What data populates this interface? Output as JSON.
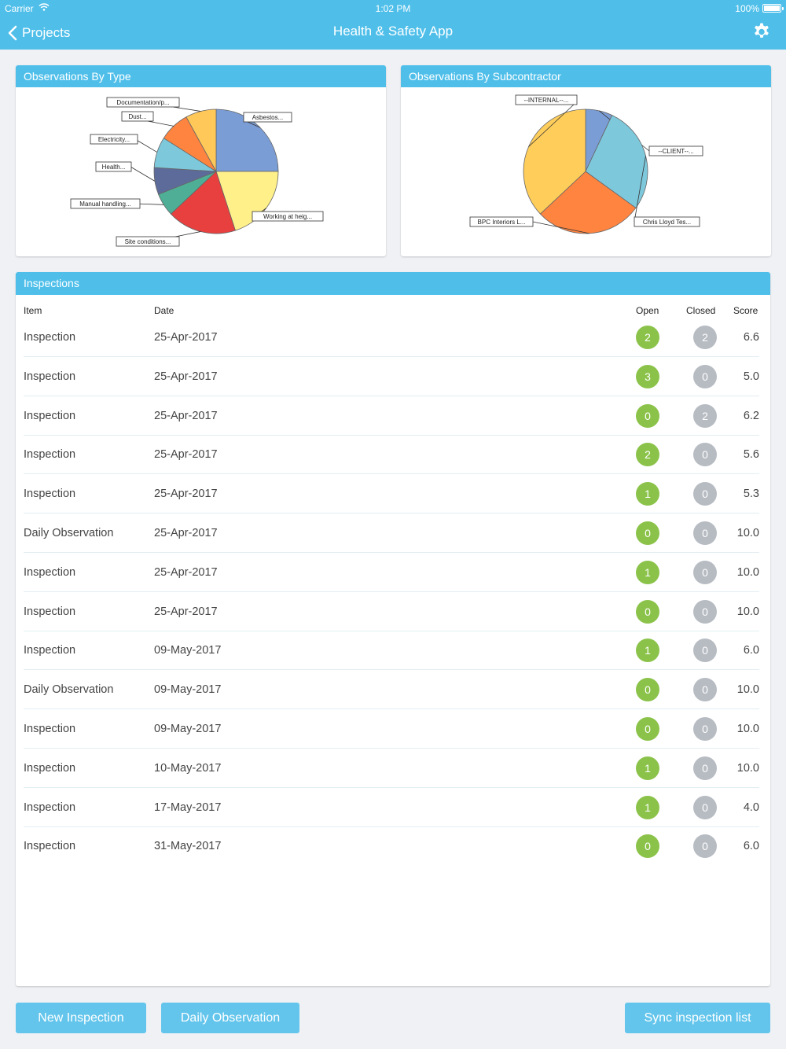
{
  "status_bar": {
    "carrier": "Carrier",
    "time": "1:02 PM",
    "battery": "100%"
  },
  "nav": {
    "back_label": "Projects",
    "title": "Health & Safety App",
    "settings_icon": "gear-icon"
  },
  "charts": {
    "by_type_title": "Observations By Type",
    "by_subcontractor_title": "Observations By Subcontractor"
  },
  "chart_data": [
    {
      "type": "pie",
      "title": "Observations By Type",
      "slices": [
        {
          "label": "Asbestos...",
          "value": 25,
          "color": "#7b9dd6"
        },
        {
          "label": "Working at heig...",
          "value": 20,
          "color": "#fff08a"
        },
        {
          "label": "Site conditions...",
          "value": 18,
          "color": "#e8403f"
        },
        {
          "label": "Manual handling...",
          "value": 6,
          "color": "#4fae96"
        },
        {
          "label": "Health...",
          "value": 7,
          "color": "#5d6b9a"
        },
        {
          "label": "Electricity...",
          "value": 8,
          "color": "#7ec8dc"
        },
        {
          "label": "Dust...",
          "value": 8,
          "color": "#ff8440"
        },
        {
          "label": "Documentation/p...",
          "value": 8,
          "color": "#ffc859"
        }
      ]
    },
    {
      "type": "pie",
      "title": "Observations By Subcontractor",
      "slices": [
        {
          "label": "--CLIENT--...",
          "value": 7,
          "color": "#7b9dd6"
        },
        {
          "label": "Chris Lloyd Tes...",
          "value": 28,
          "color": "#7ec8dc"
        },
        {
          "label": "BPC Interiors L...",
          "value": 28,
          "color": "#ff8440"
        },
        {
          "label": "--INTERNAL--...",
          "value": 37,
          "color": "#ffcd5a"
        }
      ]
    }
  ],
  "inspections": {
    "title": "Inspections",
    "columns": {
      "item": "Item",
      "date": "Date",
      "open": "Open",
      "closed": "Closed",
      "score": "Score"
    },
    "rows": [
      {
        "item": "Inspection",
        "date": "25-Apr-2017",
        "open": "2",
        "closed": "2",
        "score": "6.6"
      },
      {
        "item": "Inspection",
        "date": "25-Apr-2017",
        "open": "3",
        "closed": "0",
        "score": "5.0"
      },
      {
        "item": "Inspection",
        "date": "25-Apr-2017",
        "open": "0",
        "closed": "2",
        "score": "6.2"
      },
      {
        "item": "Inspection",
        "date": "25-Apr-2017",
        "open": "2",
        "closed": "0",
        "score": "5.6"
      },
      {
        "item": "Inspection",
        "date": "25-Apr-2017",
        "open": "1",
        "closed": "0",
        "score": "5.3"
      },
      {
        "item": "Daily Observation",
        "date": "25-Apr-2017",
        "open": "0",
        "closed": "0",
        "score": "10.0"
      },
      {
        "item": "Inspection",
        "date": "25-Apr-2017",
        "open": "1",
        "closed": "0",
        "score": "10.0"
      },
      {
        "item": "Inspection",
        "date": "25-Apr-2017",
        "open": "0",
        "closed": "0",
        "score": "10.0"
      },
      {
        "item": "Inspection",
        "date": "09-May-2017",
        "open": "1",
        "closed": "0",
        "score": "6.0"
      },
      {
        "item": "Daily Observation",
        "date": "09-May-2017",
        "open": "0",
        "closed": "0",
        "score": "10.0"
      },
      {
        "item": "Inspection",
        "date": "09-May-2017",
        "open": "0",
        "closed": "0",
        "score": "10.0"
      },
      {
        "item": "Inspection",
        "date": "10-May-2017",
        "open": "1",
        "closed": "0",
        "score": "10.0"
      },
      {
        "item": "Inspection",
        "date": "17-May-2017",
        "open": "1",
        "closed": "0",
        "score": "4.0"
      },
      {
        "item": "Inspection",
        "date": "31-May-2017",
        "open": "0",
        "closed": "0",
        "score": "6.0"
      }
    ]
  },
  "buttons": {
    "new_inspection": "New Inspection",
    "daily_observation": "Daily Observation",
    "sync": "Sync inspection list"
  },
  "colors": {
    "accent": "#4fbfea",
    "button": "#63c5ec",
    "open_badge": "#8bc34a",
    "closed_badge": "#b7bcc3"
  }
}
